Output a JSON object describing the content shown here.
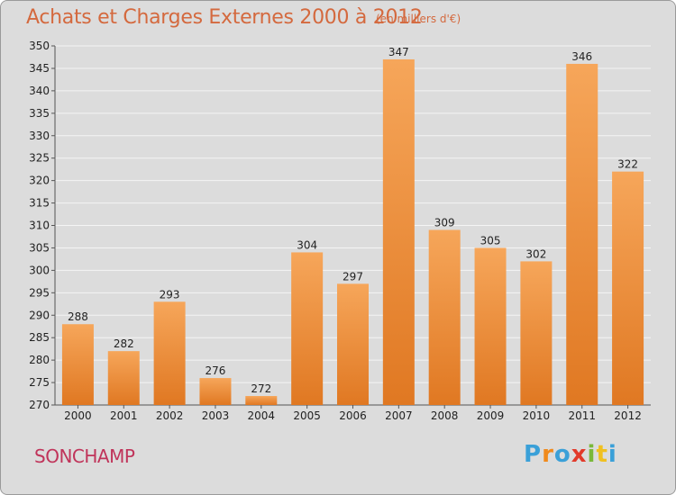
{
  "header": {
    "title": "Achats et Charges Externes 2000 à 2012",
    "subtitle": "(en milliers d'€)"
  },
  "footer": {
    "location": "SONCHAMP",
    "logo_letters": [
      "P",
      "r",
      "o",
      "x",
      "i",
      "t",
      "i"
    ]
  },
  "colors": {
    "bar_top": "#f6a65a",
    "bar_bottom": "#e07822",
    "grid": "#f4f4f4",
    "plot_bg": "#dcdcdc",
    "title": "#d4693e",
    "location": "#c0345a",
    "logo": [
      "#3aa0d8",
      "#f08a1c",
      "#3aa0d8",
      "#e23a2a",
      "#7ab83a",
      "#f0c020",
      "#3aa0d8"
    ]
  },
  "chart_data": {
    "type": "bar",
    "categories": [
      "2000",
      "2001",
      "2002",
      "2003",
      "2004",
      "2005",
      "2006",
      "2007",
      "2008",
      "2009",
      "2010",
      "2011",
      "2012"
    ],
    "values": [
      288,
      282,
      293,
      276,
      272,
      304,
      297,
      347,
      309,
      305,
      302,
      346,
      322
    ],
    "y_ticks": [
      "270",
      "275",
      "280",
      "285",
      "290",
      "295",
      "300",
      "305",
      "310",
      "315",
      "320",
      "325",
      "330",
      "335",
      "340",
      "345",
      "350"
    ],
    "ylim": [
      270,
      350
    ],
    "grid": true
  }
}
